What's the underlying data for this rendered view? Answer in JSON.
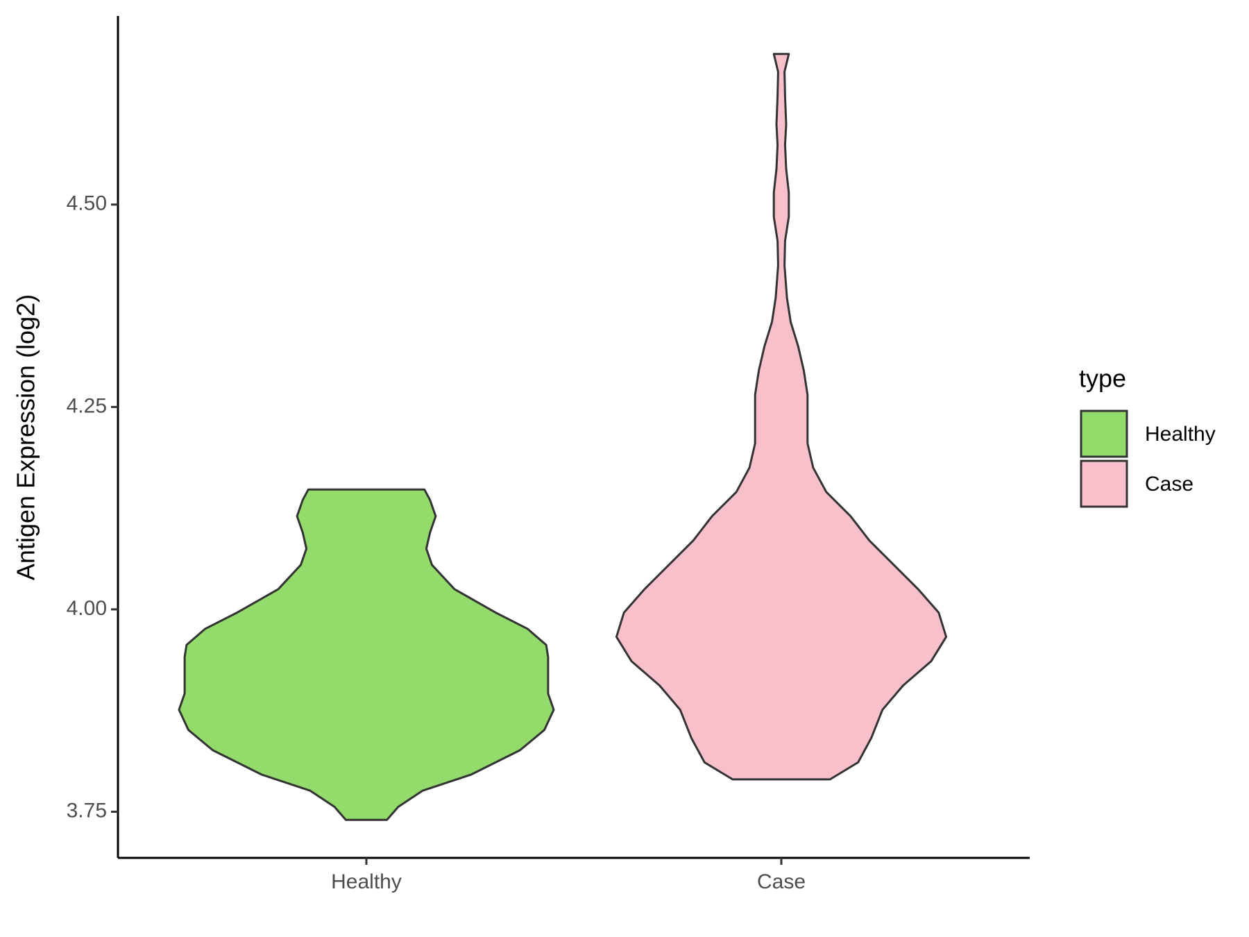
{
  "chart_data": {
    "type": "violin",
    "y_label": "Antigen Expression (log2)",
    "categories": [
      "Healthy",
      "Case"
    ],
    "legend_title": "type",
    "ylim": [
      3.693,
      4.733
    ],
    "yticks": [
      {
        "value": 3.75,
        "label": "3.75"
      },
      {
        "value": 4,
        "label": "4.00"
      },
      {
        "value": 4.25,
        "label": "4.25"
      },
      {
        "value": 4.5,
        "label": "4.50"
      }
    ],
    "series": [
      {
        "name": "Healthy",
        "color": "#93DB6A",
        "y": [
          3.74,
          3.756,
          3.776,
          3.796,
          3.826,
          3.851,
          3.876,
          3.896,
          3.916,
          3.941,
          3.956,
          3.976,
          3.996,
          4.025,
          4.055,
          4.075,
          4.095,
          4.115,
          4.135,
          4.148
        ],
        "density": [
          0.11,
          0.17,
          0.3,
          0.56,
          0.82,
          0.95,
          1,
          0.97,
          0.97,
          0.97,
          0.96,
          0.86,
          0.69,
          0.47,
          0.35,
          0.32,
          0.34,
          0.37,
          0.34,
          0.31
        ]
      },
      {
        "name": "Case",
        "color": "#F7C0CB",
        "y": [
          3.79,
          3.811,
          3.841,
          3.876,
          3.906,
          3.936,
          3.966,
          3.996,
          4.025,
          4.055,
          4.085,
          4.115,
          4.145,
          4.175,
          4.205,
          4.235,
          4.265,
          4.295,
          4.325,
          4.355,
          4.385,
          4.425,
          4.455,
          4.485,
          4.515,
          4.544,
          4.574,
          4.599,
          4.634,
          4.664,
          4.686
        ],
        "density": [
          0.26,
          0.41,
          0.48,
          0.54,
          0.65,
          0.8,
          0.88,
          0.84,
          0.73,
          0.6,
          0.47,
          0.37,
          0.24,
          0.17,
          0.14,
          0.14,
          0.14,
          0.12,
          0.09,
          0.05,
          0.03,
          0.017,
          0.02,
          0.04,
          0.04,
          0.026,
          0.02,
          0.026,
          0.02,
          0.017,
          0.04
        ]
      }
    ]
  }
}
